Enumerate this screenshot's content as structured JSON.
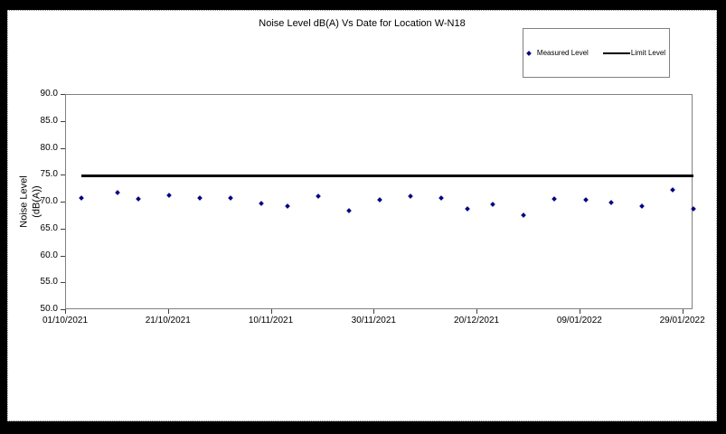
{
  "window": {
    "frame_color": "#000000",
    "chart_background": "#ffffff"
  },
  "chart_data": {
    "type": "scatter",
    "title": "Noise Level dB(A) Vs Date for Location W-N18",
    "ylabel": "Noise Level (dB(A))",
    "ylabel_lines": [
      "Noise Level",
      "(dB(A))"
    ],
    "xlabel": "",
    "ylim": [
      50.0,
      90.0
    ],
    "ytick_step": 5.0,
    "grid": false,
    "y_axis": {
      "ticks": [
        {
          "label": "90.0",
          "value": 90.0
        },
        {
          "label": "85.0",
          "value": 85.0
        },
        {
          "label": "80.0",
          "value": 80.0
        },
        {
          "label": "75.0",
          "value": 75.0
        },
        {
          "label": "70.0",
          "value": 70.0
        },
        {
          "label": "65.0",
          "value": 65.0
        },
        {
          "label": "60.0",
          "value": 60.0
        },
        {
          "label": "55.0",
          "value": 55.0
        },
        {
          "label": "50.0",
          "value": 50.0
        }
      ]
    },
    "x_axis": {
      "max_day": 122,
      "tick_interval_days": 20,
      "ticks": [
        {
          "label": "01/10/2021",
          "day": 0
        },
        {
          "label": "21/10/2021",
          "day": 20
        },
        {
          "label": "10/11/2021",
          "day": 40
        },
        {
          "label": "30/11/2021",
          "day": 60
        },
        {
          "label": "20/12/2021",
          "day": 80
        },
        {
          "label": "09/01/2022",
          "day": 100
        },
        {
          "label": "29/01/2022",
          "day": 120
        }
      ]
    },
    "legend": {
      "position": "top-right",
      "entries": [
        {
          "label": "Measured Level",
          "marker": "diamond",
          "color": "#000080"
        },
        {
          "label": "Limit Level",
          "marker": "line",
          "color": "#000000"
        }
      ]
    },
    "series": [
      {
        "name": "Measured Level",
        "type": "scatter",
        "marker": "diamond",
        "color": "#000080",
        "points": [
          {
            "day": 3,
            "date_est": "04/10/2021",
            "value": 70.9
          },
          {
            "day": 10,
            "date_est": "11/10/2021",
            "value": 71.8
          },
          {
            "day": 14,
            "date_est": "15/10/2021",
            "value": 70.6
          },
          {
            "day": 20,
            "date_est": "21/10/2021",
            "value": 71.3
          },
          {
            "day": 26,
            "date_est": "27/10/2021",
            "value": 70.9
          },
          {
            "day": 32,
            "date_est": "02/11/2021",
            "value": 70.9
          },
          {
            "day": 38,
            "date_est": "08/11/2021",
            "value": 69.9
          },
          {
            "day": 43,
            "date_est": "13/11/2021",
            "value": 69.4
          },
          {
            "day": 49,
            "date_est": "19/11/2021",
            "value": 71.2
          },
          {
            "day": 55,
            "date_est": "25/11/2021",
            "value": 68.5
          },
          {
            "day": 61,
            "date_est": "01/12/2021",
            "value": 70.5
          },
          {
            "day": 67,
            "date_est": "07/12/2021",
            "value": 71.1
          },
          {
            "day": 73,
            "date_est": "13/12/2021",
            "value": 70.8
          },
          {
            "day": 78,
            "date_est": "18/12/2021",
            "value": 68.8
          },
          {
            "day": 83,
            "date_est": "23/12/2021",
            "value": 69.6
          },
          {
            "day": 89,
            "date_est": "29/12/2021",
            "value": 67.7
          },
          {
            "day": 95,
            "date_est": "04/01/2022",
            "value": 70.6
          },
          {
            "day": 101,
            "date_est": "10/01/2022",
            "value": 70.5
          },
          {
            "day": 106,
            "date_est": "15/01/2022",
            "value": 70.0
          },
          {
            "day": 112,
            "date_est": "21/01/2022",
            "value": 69.4
          },
          {
            "day": 118,
            "date_est": "27/01/2022",
            "value": 72.3
          },
          {
            "day": 122,
            "date_est": "31/01/2022",
            "value": 68.9
          }
        ]
      },
      {
        "name": "Limit Level",
        "type": "line",
        "color": "#000000",
        "value": 75.0,
        "day_start": 3,
        "day_end": 122
      }
    ]
  }
}
